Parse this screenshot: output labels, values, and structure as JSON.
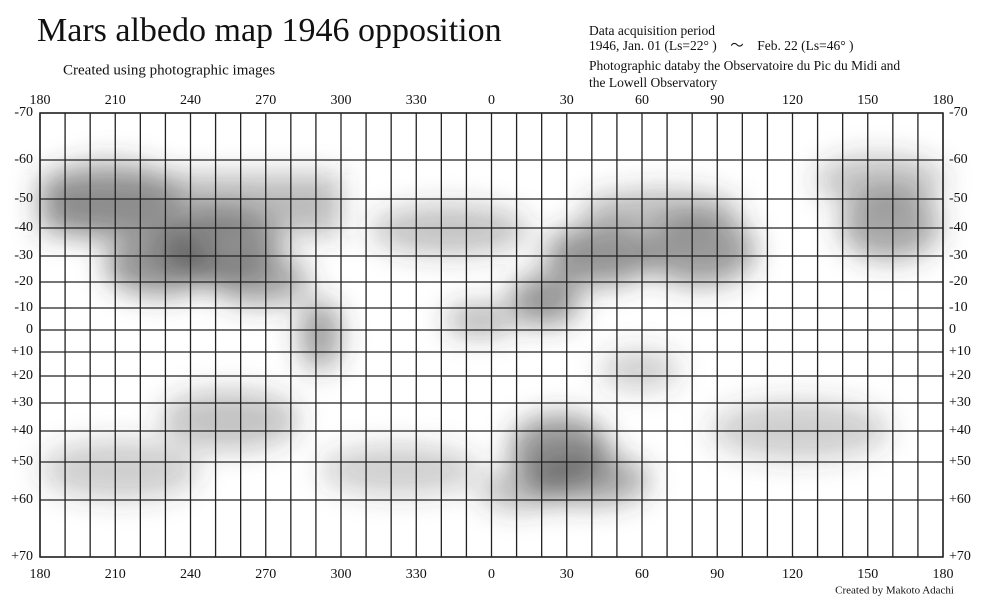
{
  "header": {
    "title": "Mars albedo map 1946 opposition",
    "subtitle": "Created using photographic images",
    "info": [
      "Data acquisition period",
      "1946, Jan. 01 (Ls=22° )　～　Feb. 22 (Ls=46° )",
      "Photographic databy the Observatoire du Pic du Midi and",
      "the Lowell Observatory"
    ]
  },
  "map": {
    "longitude_labels": [
      "180",
      "210",
      "240",
      "270",
      "300",
      "330",
      "0",
      "30",
      "60",
      "90",
      "120",
      "150",
      "180"
    ],
    "latitude_labels": [
      "-70",
      "-60",
      "-50",
      "-40",
      "-30",
      "-20",
      "-10",
      "0",
      "+10",
      "+20",
      "+30",
      "+40",
      "+50",
      "+60",
      "+70"
    ]
  },
  "footer": {
    "credit": "Created by Makoto Adachi"
  }
}
